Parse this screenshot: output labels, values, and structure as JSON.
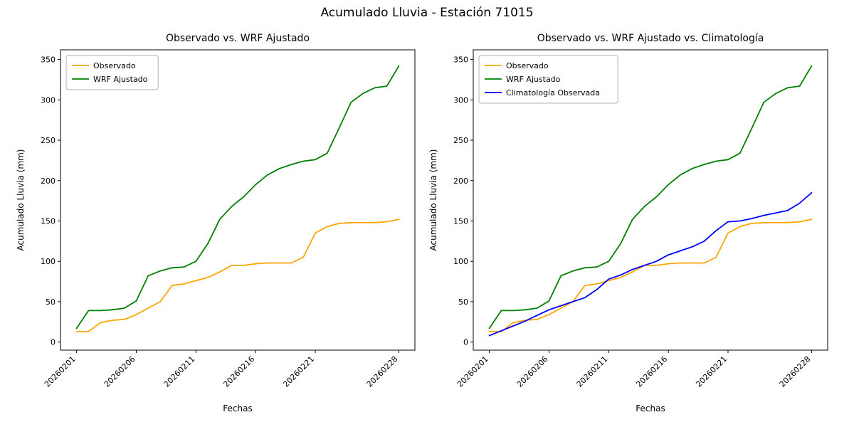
{
  "figure": {
    "title": "Acumulado Lluvia - Estación 71015",
    "background": "#ffffff"
  },
  "colors": {
    "observado": "#ffa500",
    "wrf": "#008000",
    "climatologia": "#0000ff",
    "axis": "#000000",
    "legend_border": "#b0b0b0"
  },
  "chart_data": [
    {
      "type": "line",
      "title": "Observado vs. WRF Ajustado",
      "xlabel": "Fechas",
      "ylabel": "Acumulado Lluvia (mm)",
      "ylim": [
        0,
        350
      ],
      "yticks": [
        0,
        50,
        100,
        150,
        200,
        250,
        300,
        350
      ],
      "grid": false,
      "legend_position": "upper-left",
      "categories": [
        "20260201",
        "20260202",
        "20260203",
        "20260204",
        "20260205",
        "20260206",
        "20260207",
        "20260208",
        "20260209",
        "20260210",
        "20260211",
        "20260212",
        "20260213",
        "20260214",
        "20260215",
        "20260216",
        "20260217",
        "20260218",
        "20260219",
        "20260220",
        "20260221",
        "20260222",
        "20260223",
        "20260224",
        "20260225",
        "20260226",
        "20260227",
        "20260228"
      ],
      "x_tick_labels": [
        "20260201",
        "20260206",
        "20260211",
        "20260216",
        "20260221",
        "20260228"
      ],
      "x_tick_indices": [
        0,
        5,
        10,
        15,
        20,
        27
      ],
      "series": [
        {
          "name": "Observado",
          "color": "#ffa500",
          "values": [
            13,
            13,
            24,
            27,
            28,
            34,
            42,
            50,
            70,
            72,
            76,
            80,
            87,
            95,
            95,
            97,
            98,
            98,
            98,
            105,
            135,
            143,
            147,
            148,
            148,
            148,
            149,
            152
          ]
        },
        {
          "name": "WRF Ajustado",
          "color": "#008000",
          "values": [
            17,
            39,
            39,
            40,
            42,
            51,
            82,
            88,
            92,
            93,
            100,
            122,
            152,
            168,
            180,
            195,
            207,
            215,
            220,
            224,
            226,
            234,
            265,
            297,
            308,
            315,
            317,
            342
          ]
        }
      ]
    },
    {
      "type": "line",
      "title": "Observado vs. WRF Ajustado vs. Climatología",
      "xlabel": "Fechas",
      "ylabel": "Acumulado Lluvia (mm)",
      "ylim": [
        0,
        350
      ],
      "yticks": [
        0,
        50,
        100,
        150,
        200,
        250,
        300,
        350
      ],
      "grid": false,
      "legend_position": "upper-left",
      "categories": [
        "20260201",
        "20260202",
        "20260203",
        "20260204",
        "20260205",
        "20260206",
        "20260207",
        "20260208",
        "20260209",
        "20260210",
        "20260211",
        "20260212",
        "20260213",
        "20260214",
        "20260215",
        "20260216",
        "20260217",
        "20260218",
        "20260219",
        "20260220",
        "20260221",
        "20260222",
        "20260223",
        "20260224",
        "20260225",
        "20260226",
        "20260227",
        "20260228"
      ],
      "x_tick_labels": [
        "20260201",
        "20260206",
        "20260211",
        "20260216",
        "20260221",
        "20260228"
      ],
      "x_tick_indices": [
        0,
        5,
        10,
        15,
        20,
        27
      ],
      "series": [
        {
          "name": "Observado",
          "color": "#ffa500",
          "values": [
            13,
            13,
            24,
            27,
            28,
            34,
            42,
            50,
            70,
            72,
            76,
            80,
            87,
            95,
            95,
            97,
            98,
            98,
            98,
            105,
            135,
            143,
            147,
            148,
            148,
            148,
            149,
            152
          ]
        },
        {
          "name": "WRF Ajustado",
          "color": "#008000",
          "values": [
            17,
            39,
            39,
            40,
            42,
            51,
            82,
            88,
            92,
            93,
            100,
            122,
            152,
            168,
            180,
            195,
            207,
            215,
            220,
            224,
            226,
            234,
            265,
            297,
            308,
            315,
            317,
            342
          ]
        },
        {
          "name": "Climatología Observada",
          "color": "#0000ff",
          "values": [
            8,
            14,
            20,
            26,
            33,
            40,
            45,
            50,
            55,
            65,
            78,
            83,
            90,
            95,
            100,
            108,
            113,
            118,
            125,
            138,
            149,
            150,
            153,
            157,
            160,
            163,
            172,
            185
          ]
        }
      ]
    }
  ]
}
